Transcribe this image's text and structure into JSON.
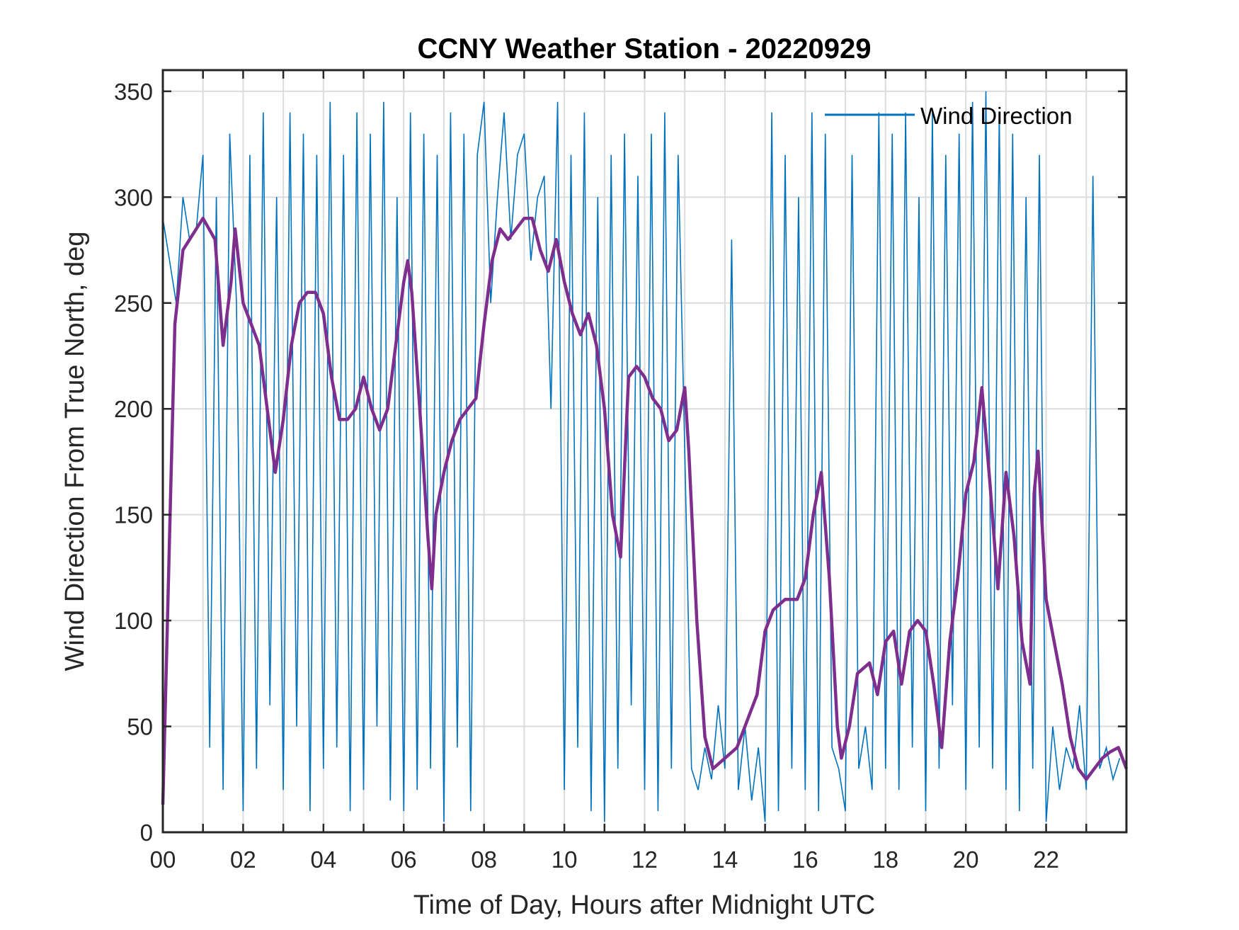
{
  "chart_data": {
    "type": "line",
    "title": "CCNY Weather Station - 20220929",
    "xlabel": "Time of Day, Hours after Midnight UTC",
    "ylabel": "Wind Direction From True North, deg",
    "xlim": [
      0,
      24
    ],
    "ylim": [
      0,
      360
    ],
    "xticks": [
      0,
      2,
      4,
      6,
      8,
      10,
      12,
      14,
      16,
      18,
      20,
      22
    ],
    "xtick_labels": [
      "00",
      "02",
      "04",
      "06",
      "08",
      "10",
      "12",
      "14",
      "16",
      "18",
      "20",
      "22"
    ],
    "yticks": [
      0,
      50,
      100,
      150,
      200,
      250,
      300,
      350
    ],
    "ytick_labels": [
      "0",
      "50",
      "100",
      "150",
      "200",
      "250",
      "300",
      "350"
    ],
    "grid": true,
    "legend": {
      "placement": "top-right",
      "entries": [
        "Wind Direction"
      ]
    },
    "colors": {
      "raw": "#0072BD",
      "smoothed": "#7E2F8E"
    },
    "series": [
      {
        "name": "Wind Direction",
        "x_step_hours": 0.1666667,
        "values": [
          290,
          270,
          250,
          300,
          280,
          285,
          320,
          40,
          300,
          20,
          330,
          250,
          10,
          320,
          30,
          340,
          60,
          300,
          20,
          340,
          50,
          330,
          10,
          320,
          30,
          345,
          40,
          320,
          10,
          340,
          20,
          330,
          50,
          345,
          15,
          300,
          10,
          340,
          20,
          330,
          30,
          320,
          5,
          340,
          40,
          330,
          10,
          320,
          345,
          250,
          300,
          340,
          280,
          320,
          330,
          270,
          300,
          310,
          200,
          345,
          20,
          320,
          40,
          340,
          10,
          300,
          5,
          320,
          30,
          330,
          60,
          310,
          20,
          330,
          10,
          340,
          30,
          320,
          180,
          30,
          20,
          40,
          25,
          60,
          30,
          280,
          20,
          50,
          15,
          40,
          5,
          340,
          10,
          320,
          30,
          300,
          20,
          340,
          10,
          330,
          40,
          30,
          10,
          320,
          30,
          50,
          20,
          340,
          30,
          330,
          20,
          340,
          40,
          300,
          10,
          340,
          30,
          320,
          60,
          330,
          20,
          345,
          40,
          350,
          30,
          340,
          20,
          330,
          10,
          300,
          30,
          320,
          5,
          50,
          20,
          40,
          30,
          60,
          20,
          310,
          30,
          40,
          25,
          35
        ]
      },
      {
        "x": [
          0,
          0.3,
          0.5,
          1.0,
          1.3,
          1.5,
          1.7,
          1.8,
          2.0,
          2.2,
          2.4,
          2.6,
          2.8,
          3.0,
          3.2,
          3.4,
          3.6,
          3.8,
          4.0,
          4.2,
          4.4,
          4.6,
          4.8,
          5.0,
          5.2,
          5.4,
          5.6,
          5.8,
          6.0,
          6.1,
          6.2,
          6.4,
          6.6,
          6.7,
          6.8,
          7.0,
          7.2,
          7.4,
          7.6,
          7.8,
          8.0,
          8.2,
          8.4,
          8.6,
          8.8,
          9.0,
          9.2,
          9.4,
          9.6,
          9.8,
          10.0,
          10.2,
          10.4,
          10.6,
          10.8,
          11.0,
          11.2,
          11.4,
          11.6,
          11.8,
          12.0,
          12.2,
          12.4,
          12.6,
          12.8,
          13.0,
          13.1,
          13.3,
          13.5,
          13.7,
          14.0,
          14.3,
          14.6,
          14.8,
          15.0,
          15.2,
          15.5,
          15.8,
          16.0,
          16.2,
          16.4,
          16.6,
          16.8,
          16.9,
          17.1,
          17.3,
          17.6,
          17.8,
          18.0,
          18.2,
          18.4,
          18.6,
          18.8,
          19.0,
          19.2,
          19.4,
          19.6,
          19.8,
          20.0,
          20.2,
          20.4,
          20.6,
          20.8,
          21.0,
          21.2,
          21.4,
          21.6,
          21.7,
          21.8,
          22.0,
          22.2,
          22.4,
          22.6,
          22.8,
          23.0,
          23.2,
          23.4,
          23.6,
          23.8,
          24.0
        ],
        "values": [
          13,
          240,
          275,
          290,
          280,
          230,
          260,
          285,
          250,
          240,
          230,
          200,
          170,
          195,
          230,
          250,
          255,
          255,
          245,
          215,
          195,
          195,
          200,
          215,
          200,
          190,
          200,
          230,
          260,
          270,
          255,
          200,
          140,
          115,
          150,
          170,
          185,
          195,
          200,
          205,
          240,
          270,
          285,
          280,
          285,
          290,
          290,
          275,
          265,
          280,
          260,
          245,
          235,
          245,
          230,
          200,
          150,
          130,
          215,
          220,
          215,
          205,
          200,
          185,
          190,
          210,
          180,
          100,
          45,
          30,
          35,
          40,
          55,
          65,
          95,
          105,
          110,
          110,
          120,
          150,
          170,
          120,
          50,
          35,
          50,
          75,
          80,
          65,
          90,
          95,
          70,
          95,
          100,
          95,
          70,
          40,
          90,
          120,
          160,
          175,
          210,
          165,
          115,
          170,
          140,
          90,
          70,
          160,
          180,
          110,
          90,
          70,
          45,
          30,
          25,
          30,
          35,
          38,
          40,
          30
        ]
      }
    ]
  }
}
